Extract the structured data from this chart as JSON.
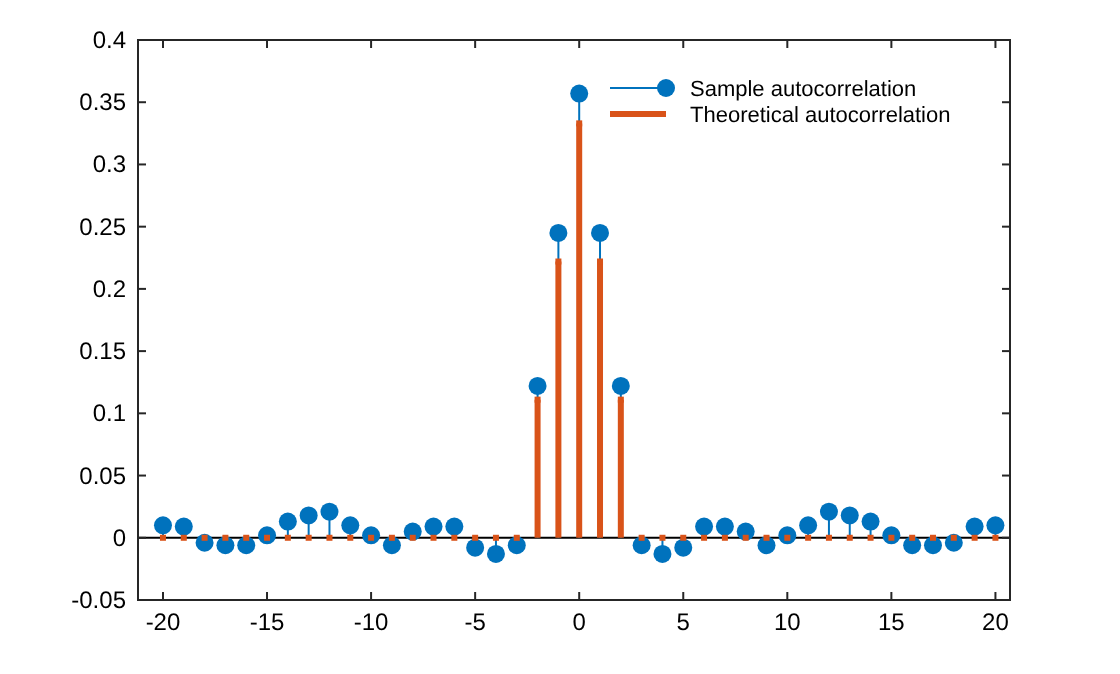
{
  "chart_data": {
    "type": "lollipop",
    "x": [
      -20,
      -19,
      -18,
      -17,
      -16,
      -15,
      -14,
      -13,
      -12,
      -11,
      -10,
      -9,
      -8,
      -7,
      -6,
      -5,
      -4,
      -3,
      -2,
      -1,
      0,
      1,
      2,
      3,
      4,
      5,
      6,
      7,
      8,
      9,
      10,
      11,
      12,
      13,
      14,
      15,
      16,
      17,
      18,
      19,
      20
    ],
    "series": [
      {
        "name": "Sample autocorrelation",
        "color": "#0072bd",
        "marker": "circle",
        "values": [
          0.01,
          0.009,
          -0.004,
          -0.006,
          -0.006,
          0.002,
          0.013,
          0.018,
          0.021,
          0.01,
          0.002,
          -0.006,
          0.005,
          0.009,
          0.009,
          -0.008,
          -0.013,
          -0.006,
          0.122,
          0.245,
          0.357,
          0.245,
          0.122,
          -0.006,
          -0.013,
          -0.008,
          0.009,
          0.009,
          0.005,
          -0.006,
          0.002,
          0.01,
          0.021,
          0.018,
          0.013,
          0.002,
          -0.006,
          -0.006,
          -0.004,
          0.009,
          0.01
        ]
      },
      {
        "name": "Theoretical autocorrelation",
        "color": "#d95319",
        "marker": "square",
        "values": [
          0,
          0,
          0,
          0,
          0,
          0,
          0,
          0,
          0,
          0,
          0,
          0,
          0,
          0,
          0,
          0,
          0,
          0,
          0.111,
          0.222,
          0.333,
          0.222,
          0.111,
          0,
          0,
          0,
          0,
          0,
          0,
          0,
          0,
          0,
          0,
          0,
          0,
          0,
          0,
          0,
          0,
          0,
          0
        ]
      }
    ],
    "xlim": [
      -21.2,
      20.7
    ],
    "xticks": [
      -20,
      -15,
      -10,
      -5,
      0,
      5,
      10,
      15,
      20
    ],
    "ylim": [
      -0.05,
      0.4
    ],
    "yticks": [
      -0.05,
      0,
      0.05,
      0.1,
      0.15,
      0.2,
      0.25,
      0.3,
      0.35,
      0.4
    ],
    "ref_lines": [
      {
        "axis": "y",
        "value": 0,
        "color": "#000000"
      }
    ],
    "legend": "top right",
    "grid": false
  }
}
